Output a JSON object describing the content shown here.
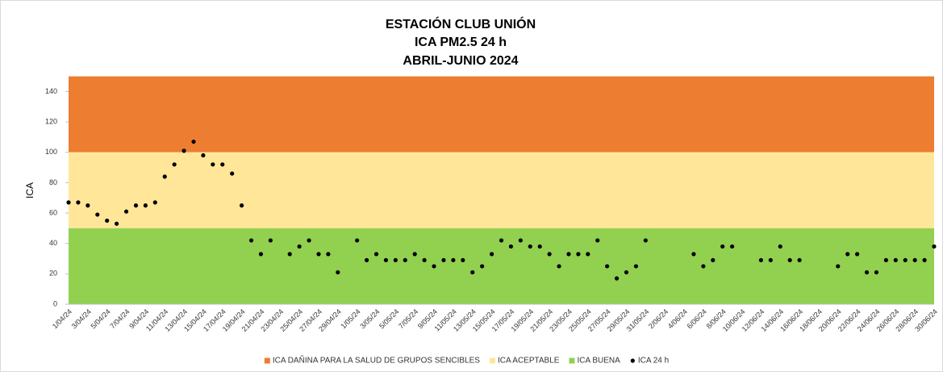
{
  "chart_data": {
    "type": "scatter",
    "title": [
      "ESTACIÓN CLUB UNIÓN",
      "ICA PM2.5 24 h",
      "ABRIL-JUNIO 2024"
    ],
    "y_label": "ICA",
    "ylim": [
      0,
      150
    ],
    "yticks": [
      0,
      20,
      40,
      60,
      80,
      100,
      120,
      140
    ],
    "bands": [
      {
        "name": "ICA DAÑINA PARA LA SALUD DE GRUPOS SENCIBLES",
        "color": "#ed7d31",
        "range": [
          100,
          150
        ]
      },
      {
        "name": "ICA ACEPTABLE",
        "color": "#ffe699",
        "range": [
          50,
          100
        ]
      },
      {
        "name": "ICA BUENA",
        "color": "#92d050",
        "range": [
          0,
          50
        ]
      }
    ],
    "categories": [
      "1/04/24",
      null,
      "3/04/24",
      null,
      "5/04/24",
      null,
      "7/04/24",
      null,
      "9/04/24",
      null,
      "11/04/24",
      null,
      "13/04/24",
      null,
      "15/04/24",
      null,
      "17/04/24",
      null,
      "19/04/24",
      null,
      "21/04/24",
      null,
      "23/04/24",
      null,
      "25/04/24",
      null,
      "27/04/24",
      null,
      "29/04/24",
      null,
      "1/05/24",
      null,
      "3/05/24",
      null,
      "5/05/24",
      null,
      "7/05/24",
      null,
      "9/05/24",
      null,
      "11/05/24",
      null,
      "13/05/24",
      null,
      "15/05/24",
      null,
      "17/05/24",
      null,
      "19/05/24",
      null,
      "21/05/24",
      null,
      "23/05/24",
      null,
      "25/05/24",
      null,
      "27/05/24",
      null,
      "29/05/24",
      null,
      "31/05/24",
      null,
      "2/06/24",
      null,
      "4/06/24",
      null,
      "6/06/24",
      null,
      "8/06/24",
      null,
      "10/06/24",
      null,
      "12/06/24",
      null,
      "14/06/24",
      null,
      "16/06/24",
      null,
      "18/06/24",
      null,
      "20/06/24",
      null,
      "22/06/24",
      null,
      "24/06/24",
      null,
      "26/06/24",
      null,
      "28/06/24",
      null,
      "30/06/24"
    ],
    "series": [
      {
        "name": "ICA 24 h",
        "color": "#000000",
        "values": [
          67,
          67,
          65,
          59,
          55,
          53,
          61,
          65,
          65,
          67,
          84,
          92,
          101,
          107,
          98,
          92,
          92,
          86,
          65,
          42,
          33,
          42,
          null,
          33,
          38,
          42,
          33,
          33,
          21,
          null,
          42,
          29,
          33,
          29,
          29,
          29,
          33,
          29,
          25,
          29,
          29,
          29,
          21,
          25,
          33,
          42,
          38,
          42,
          38,
          38,
          33,
          25,
          33,
          33,
          33,
          42,
          25,
          17,
          21,
          25,
          42,
          null,
          null,
          null,
          null,
          33,
          25,
          29,
          38,
          38,
          null,
          null,
          29,
          29,
          38,
          29,
          29,
          null,
          null,
          null,
          25,
          33,
          33,
          21,
          21,
          29,
          29,
          29,
          29,
          29,
          38
        ]
      }
    ]
  }
}
